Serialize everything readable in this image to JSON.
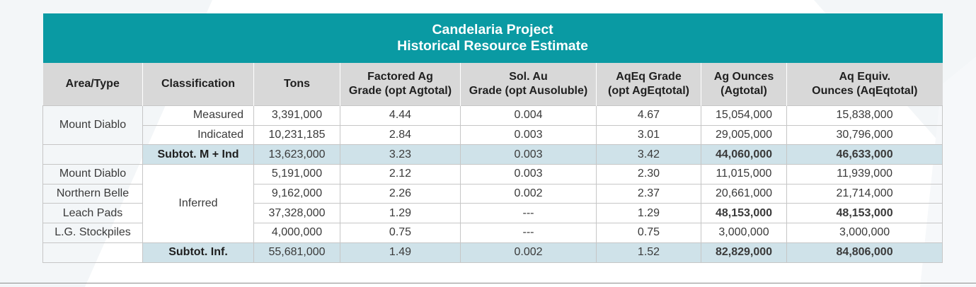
{
  "table": {
    "title_line1": "Candelaria Project",
    "title_line2": "Historical Resource Estimate",
    "headers": [
      [
        "Area/Type"
      ],
      [
        "Classification"
      ],
      [
        "Tons"
      ],
      [
        "Factored Ag",
        "Grade (opt Agtotal)"
      ],
      [
        "Sol. Au",
        "Grade (opt Ausoluble)"
      ],
      [
        "AqEq Grade",
        "(opt AgEqtotal)"
      ],
      [
        "Ag Ounces",
        "(Agtotal)"
      ],
      [
        "Aq Equiv.",
        "Ounces (AqEqtotal)"
      ]
    ],
    "group1_area": "Mount Diablo",
    "group2_class": "Inferred",
    "rows": [
      {
        "area": "",
        "class": "Measured",
        "tons": "3,391,000",
        "ag_grade": "4.44",
        "au_grade": "0.004",
        "ageq_grade": "4.67",
        "ag_oz": "15,054,000",
        "ageq_oz": "15,838,000"
      },
      {
        "area": "",
        "class": "Indicated",
        "tons": "10,231,185",
        "ag_grade": "2.84",
        "au_grade": "0.003",
        "ageq_grade": "3.01",
        "ag_oz": "29,005,000",
        "ageq_oz": "30,796,000"
      },
      {
        "area": "",
        "class": "Subtot. M + Ind",
        "tons": "13,623,000",
        "ag_grade": "3.23",
        "au_grade": "0.003",
        "ageq_grade": "3.42",
        "ag_oz": "44,060,000",
        "ageq_oz": "46,633,000"
      },
      {
        "area": "Mount Diablo",
        "class": "",
        "tons": "5,191,000",
        "ag_grade": "2.12",
        "au_grade": "0.003",
        "ageq_grade": "2.30",
        "ag_oz": "11,015,000",
        "ageq_oz": "11,939,000"
      },
      {
        "area": "Northern Belle",
        "class": "",
        "tons": "9,162,000",
        "ag_grade": "2.26",
        "au_grade": "0.002",
        "ageq_grade": "2.37",
        "ag_oz": "20,661,000",
        "ageq_oz": "21,714,000"
      },
      {
        "area": "Leach Pads",
        "class": "",
        "tons": "37,328,000",
        "ag_grade": "1.29",
        "au_grade": "---",
        "ageq_grade": "1.29",
        "ag_oz": "48,153,000",
        "ageq_oz": "48,153,000"
      },
      {
        "area": "L.G. Stockpiles",
        "class": "",
        "tons": "4,000,000",
        "ag_grade": "0.75",
        "au_grade": "---",
        "ageq_grade": "0.75",
        "ag_oz": "3,000,000",
        "ageq_oz": "3,000,000"
      },
      {
        "area": "",
        "class": "Subtot. Inf.",
        "tons": "55,681,000",
        "ag_grade": "1.49",
        "au_grade": "0.002",
        "ageq_grade": "1.52",
        "ag_oz": "82,829,000",
        "ageq_oz": "84,806,000"
      }
    ],
    "colors": {
      "title_bg": "#0a9aa3",
      "header_bg": "#d8d8d8",
      "subtotal_bg": "#cfe2e9"
    }
  }
}
